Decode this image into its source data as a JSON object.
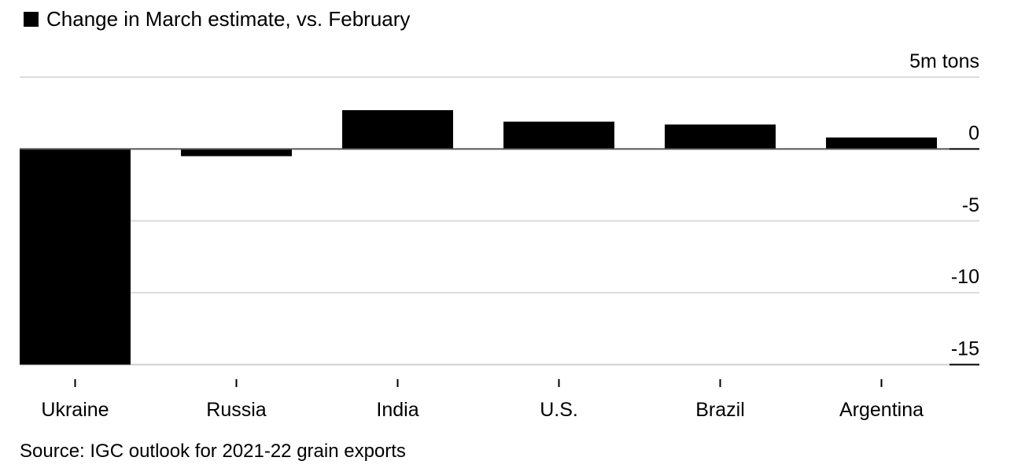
{
  "legend": {
    "label": "Change in March estimate, vs. February",
    "color": "#000000"
  },
  "source": "Source: IGC outlook for 2021-22 grain exports",
  "chart_data": {
    "type": "bar",
    "categories": [
      "Ukraine",
      "Russia",
      "India",
      "U.S.",
      "Brazil",
      "Argentina"
    ],
    "series": [
      {
        "name": "Change in March estimate, vs. February",
        "values": [
          -15.0,
          -0.5,
          2.7,
          1.9,
          1.7,
          0.8
        ]
      }
    ],
    "yticks": [
      {
        "value": 5,
        "label": "5m tons"
      },
      {
        "value": 0,
        "label": "0"
      },
      {
        "value": -5,
        "label": "-5"
      },
      {
        "value": -10,
        "label": "-10"
      },
      {
        "value": -15,
        "label": "-15"
      }
    ],
    "ylim": [
      -15,
      5
    ],
    "grid": true,
    "bar_color": "#000000",
    "grid_color": "#dcdcdc"
  }
}
